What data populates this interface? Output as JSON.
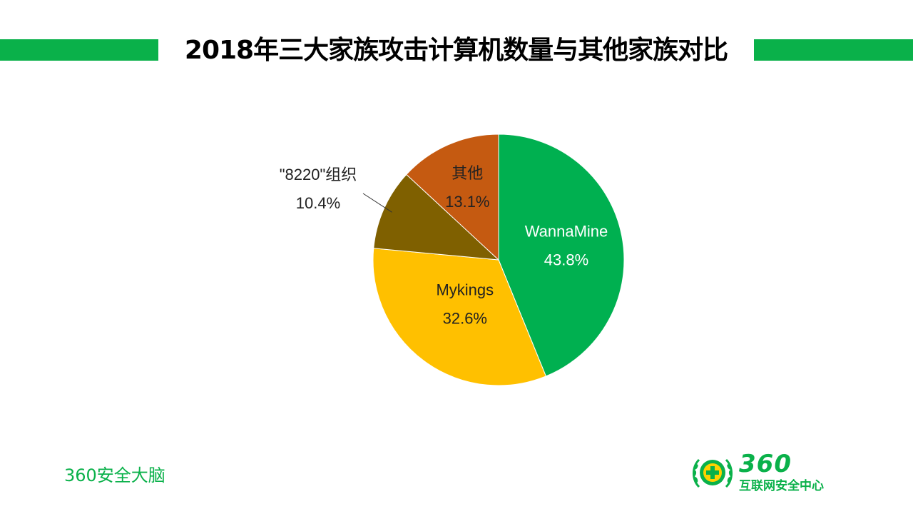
{
  "header": {
    "title": "2018年三大家族攻击计算机数量与其他家族对比"
  },
  "chart_data": {
    "type": "pie",
    "slices": [
      {
        "label": "WannaMine",
        "value": 43.8,
        "display": "43.8%",
        "color": "#00b050",
        "text_color": "#ffffff"
      },
      {
        "label": "Mykings",
        "value": 32.6,
        "display": "32.6%",
        "color": "#ffc000",
        "text_color": "#222222"
      },
      {
        "label": "\"8220\"组织",
        "value": 10.4,
        "display": "10.4%",
        "color": "#7f6000",
        "text_color": "#222222"
      },
      {
        "label": "其他",
        "value": 13.1,
        "display": "13.1%",
        "color": "#c55a11",
        "text_color": "#222222"
      }
    ],
    "start": "12 o'clock",
    "direction": "clockwise"
  },
  "footer": {
    "brand": "360安全大脑",
    "logo_number": "360",
    "logo_text": "互联网安全中心",
    "logo_icon": "360-plus-laurel-icon",
    "accent": "#0ab14a"
  }
}
